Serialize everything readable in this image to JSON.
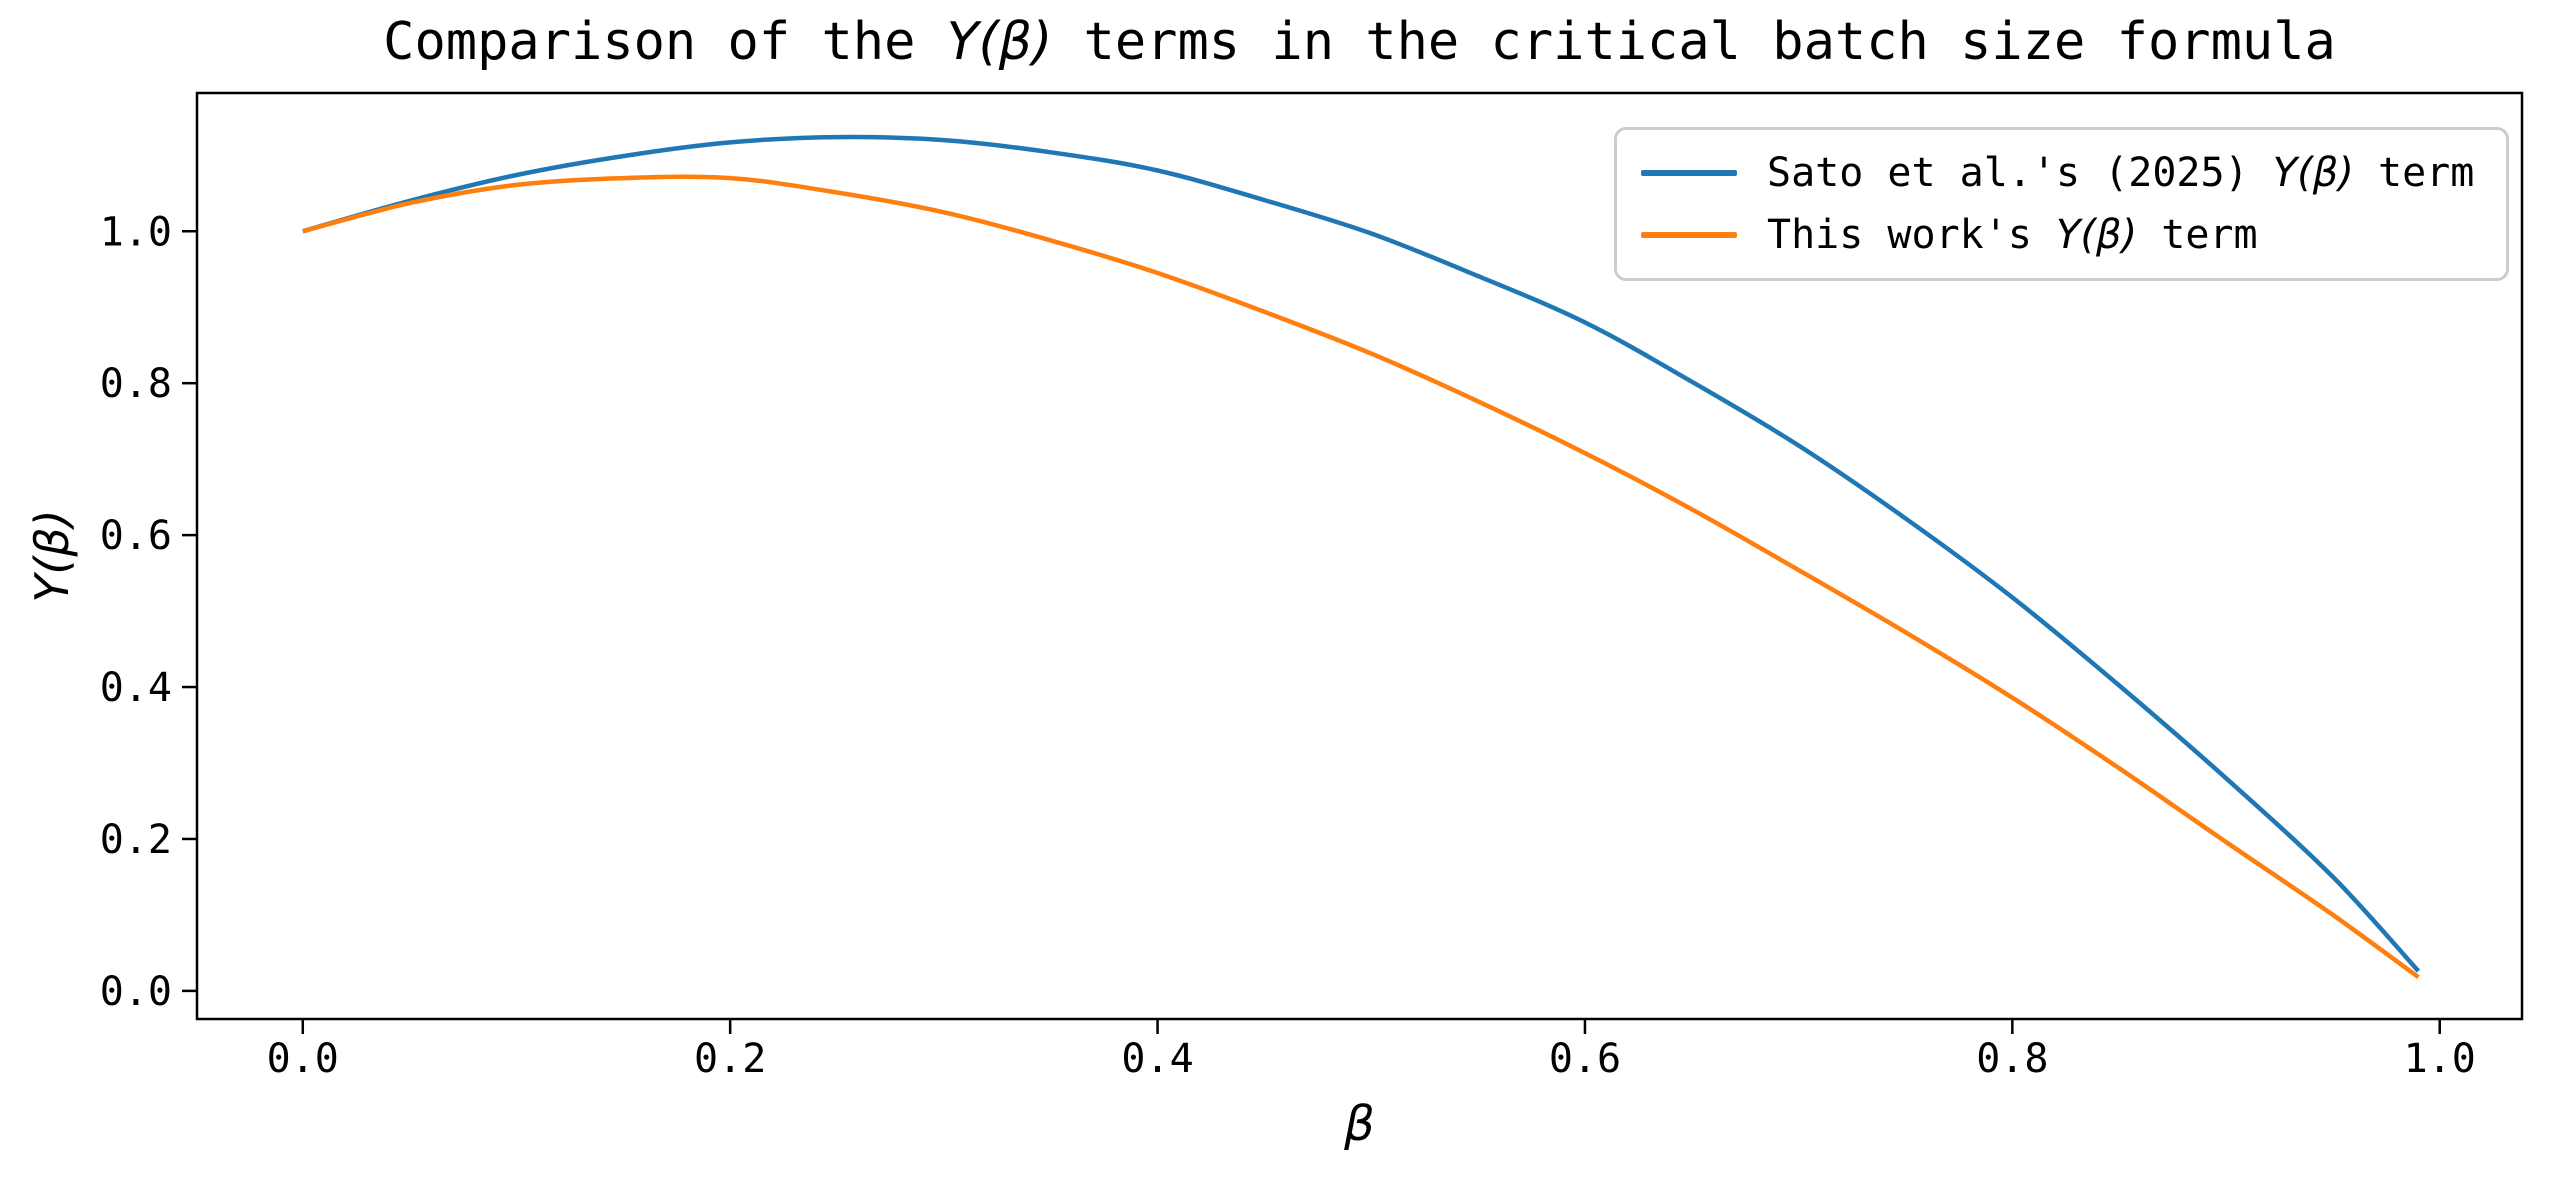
{
  "figure": {
    "title": {
      "full_text": "Comparison of the Y(β) terms in the critical batch size formula",
      "parts": {
        "pre": "Comparison of the ",
        "math": "Y(β)",
        "post": " terms in the critical batch size formula"
      }
    },
    "xlabel": "β",
    "ylabel": "Y(β)"
  },
  "legend": {
    "position": "upper right",
    "entries": [
      {
        "full_text": "Sato et al.'s (2025) Y(β) term",
        "pre": "Sato et al.'s (2025) ",
        "math": "Y(β)",
        "post": " term",
        "color": "#1f77b4"
      },
      {
        "full_text": "This work's Y(β) term",
        "pre": "This work's ",
        "math": "Y(β)",
        "post": " term",
        "color": "#ff7f0e"
      }
    ]
  },
  "chart_data": {
    "type": "line",
    "title": "Comparison of the Y(β) terms in the critical batch size formula",
    "xlabel": "β",
    "ylabel": "Y(β)",
    "grid": false,
    "legend_position": "upper right",
    "xlim": [
      -0.0495,
      1.0385
    ],
    "ylim": [
      -0.037,
      1.182
    ],
    "x_ticks": [
      0.0,
      0.2,
      0.4,
      0.6,
      0.8,
      1.0
    ],
    "x_tick_labels": [
      "0.0",
      "0.2",
      "0.4",
      "0.6",
      "0.8",
      "1.0"
    ],
    "y_ticks": [
      0.0,
      0.2,
      0.4,
      0.6,
      0.8,
      1.0
    ],
    "y_tick_labels": [
      "0.0",
      "0.2",
      "0.4",
      "0.6",
      "0.8",
      "1.0"
    ],
    "x": [
      0.0,
      0.05,
      0.1,
      0.15,
      0.2,
      0.25,
      0.3,
      0.35,
      0.4,
      0.45,
      0.5,
      0.55,
      0.6,
      0.65,
      0.7,
      0.75,
      0.8,
      0.85,
      0.9,
      0.95,
      0.99
    ],
    "series": [
      {
        "name": "Sato et al.'s (2025) Y(β) term",
        "color": "#1f77b4",
        "line_width": 4.5,
        "values": [
          1.0,
          1.04,
          1.074,
          1.099,
          1.117,
          1.124,
          1.12,
          1.104,
          1.08,
          1.041,
          0.997,
          0.941,
          0.88,
          0.802,
          0.718,
          0.622,
          0.518,
          0.402,
          0.28,
          0.15,
          0.026
        ]
      },
      {
        "name": "This work's Y(β) term",
        "color": "#ff7f0e",
        "line_width": 4.5,
        "values": [
          1.0,
          1.037,
          1.061,
          1.07,
          1.07,
          1.051,
          1.025,
          0.988,
          0.945,
          0.894,
          0.839,
          0.776,
          0.708,
          0.634,
          0.554,
          0.472,
          0.386,
          0.293,
          0.196,
          0.1,
          0.018
        ]
      }
    ]
  }
}
